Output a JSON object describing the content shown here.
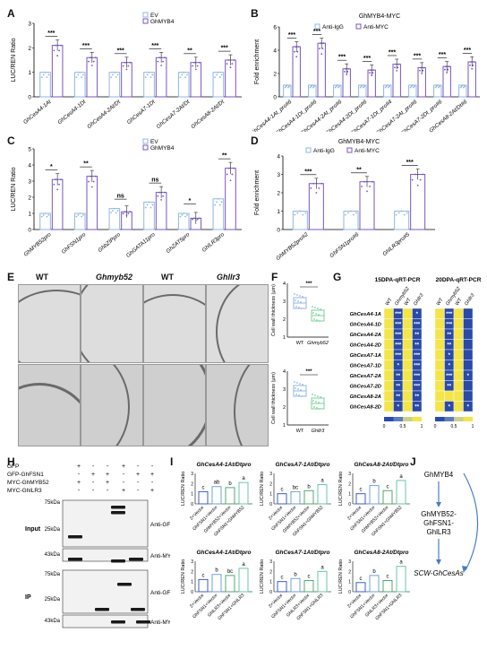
{
  "panels": {
    "A": {
      "letter": "A",
      "ylabel": "LUC/REN Ratio",
      "legend": [
        "EV",
        "GhMYB4"
      ],
      "colors": {
        "ev": "#8fb7e0",
        "myb": "#7a54c2"
      },
      "chart_data": {
        "type": "bar",
        "categories": [
          "GhCesA4-1At",
          "GhCesA4-1Dt",
          "GhCesA4-2At/Dt",
          "GhCesA7-1Dt",
          "GhCesA7-2At/Dt",
          "GhCesA8-2At/Dt"
        ],
        "series": [
          {
            "name": "EV",
            "values": [
              1,
              1,
              1,
              1,
              1,
              1
            ]
          },
          {
            "name": "GhMYB4",
            "values": [
              2.1,
              1.6,
              1.4,
              1.6,
              1.4,
              1.5
            ]
          }
        ],
        "ylim": [
          0,
          3
        ],
        "sig": [
          "***",
          "***",
          "***",
          "***",
          "**",
          "***"
        ]
      },
      "yticks": [
        "0",
        "1",
        "2",
        "3"
      ]
    },
    "B": {
      "letter": "B",
      "title": "GhMYB4-MYC",
      "ylabel": "Fold enrichment",
      "legend": [
        "Anti-IgG",
        "Anti-MYC"
      ],
      "chart_data": {
        "type": "bar",
        "categories": [
          "GhCesA4-1At_pro#6",
          "GhCesA4-1Dt_pro#6",
          "GhCesA4-2At_pro#6",
          "GhCesA4-2Dt_pro#6",
          "GhCesA7-1Dt_pro#4",
          "GhCesA7-2At_pro#6",
          "GhCesA7-2Dt_pro#6",
          "GhCesA8-2At/Dt#6"
        ],
        "series": [
          {
            "name": "Anti-IgG",
            "values": [
              1,
              1,
              1,
              1,
              1,
              1,
              1,
              1
            ]
          },
          {
            "name": "Anti-MYC",
            "values": [
              4.3,
              4.6,
              2.4,
              2.3,
              2.8,
              2.5,
              2.6,
              3.0
            ]
          }
        ],
        "ylim": [
          0,
          6
        ],
        "sig": [
          "***",
          "***",
          "***",
          "***",
          "***",
          "***",
          "***",
          "***"
        ]
      },
      "yticks": [
        "0",
        "2",
        "4",
        "6"
      ]
    },
    "C": {
      "letter": "C",
      "ylabel": "LUC/REN Ratio",
      "legend": [
        "EV",
        "GhMYB4"
      ],
      "chart_data": {
        "type": "bar",
        "categories": [
          "GhMYB52pro",
          "GhFSN1pro",
          "GhbZIPpro",
          "GhGATA11pro",
          "GhZAT5pro",
          "GhlLR3pro"
        ],
        "series": [
          {
            "name": "EV",
            "values": [
              1.0,
              1.0,
              1.3,
              1.7,
              1.0,
              1.9
            ]
          },
          {
            "name": "GhMYB4",
            "values": [
              3.1,
              3.3,
              1.1,
              2.3,
              0.7,
              3.8
            ]
          }
        ],
        "ylim": [
          0,
          5
        ],
        "sig": [
          "*",
          "**",
          "ns",
          "ns",
          "*",
          "**"
        ]
      },
      "yticks": [
        "0",
        "1",
        "2",
        "3",
        "4",
        "5"
      ]
    },
    "D": {
      "letter": "D",
      "title": "GhMYB4-MYC",
      "ylabel": "Fold enrichment",
      "legend": [
        "Anti-IgG",
        "Anti-MYC"
      ],
      "chart_data": {
        "type": "bar",
        "categories": [
          "GhMYB52pro#2",
          "GhFSN1pro#6",
          "GhlLR3pro#5"
        ],
        "series": [
          {
            "name": "Anti-IgG",
            "values": [
              1,
              1,
              1
            ]
          },
          {
            "name": "Anti-MYC",
            "values": [
              2.5,
              2.6,
              3.0
            ]
          }
        ],
        "ylim": [
          0,
          4
        ],
        "sig": [
          "***",
          "**",
          "***"
        ]
      },
      "yticks": [
        "0",
        "1",
        "2",
        "3",
        "4"
      ]
    },
    "E": {
      "letter": "E",
      "labels": [
        "WT",
        "Ghmyb52",
        "WT",
        "Ghllr3"
      ]
    },
    "F": {
      "letter": "F",
      "ylabel": "Cell wall thickness (μm)",
      "top": {
        "categories": [
          "WT",
          "Ghmyb52"
        ],
        "sig": "***",
        "yticks": [
          "1",
          "2",
          "3",
          "4"
        ]
      },
      "bottom": {
        "categories": [
          "WT",
          "Ghllr3"
        ],
        "sig": "***",
        "yticks": [
          "1",
          "2",
          "3",
          "4"
        ]
      }
    },
    "G": {
      "letter": "G",
      "titles": [
        "15DPA-qRT-PCR",
        "20DPA-qRT-PCR"
      ],
      "cols": [
        "WT",
        "Ghmyb52",
        "WT",
        "Ghllr3"
      ],
      "rows": [
        "GhCesA4-1A",
        "GhCesA4-1D",
        "GhCesA4-2A",
        "GhCesA4-2D",
        "GhCesA7-1A",
        "GhCesA7-1D",
        "GhCesA7-2A",
        "GhCesA7-2D",
        "GhCesA8-2A",
        "GhCesA8-2D"
      ],
      "stars15": [
        [
          "",
          "***",
          "",
          "*"
        ],
        [
          "",
          "***",
          "",
          "***"
        ],
        [
          "",
          "***",
          "",
          "**"
        ],
        [
          "",
          "***",
          "",
          "**"
        ],
        [
          "",
          "***",
          "",
          "***"
        ],
        [
          "",
          "*",
          "",
          "***"
        ],
        [
          "",
          "**",
          "",
          "***"
        ],
        [
          "",
          "**",
          "",
          "***"
        ],
        [
          "",
          "**",
          "",
          "**"
        ],
        [
          "",
          "*",
          "",
          "**"
        ]
      ],
      "stars20": [
        [
          "",
          "***",
          "",
          ""
        ],
        [
          "",
          "***",
          "",
          ""
        ],
        [
          "",
          "**",
          "",
          ""
        ],
        [
          "",
          "**",
          "",
          ""
        ],
        [
          "",
          "*",
          "",
          ""
        ],
        [
          "",
          "*",
          "",
          ""
        ],
        [
          "",
          "***",
          "",
          "*"
        ],
        [
          "",
          "**",
          "",
          ""
        ],
        [
          "",
          "",
          "",
          ""
        ],
        [
          "",
          "*",
          "",
          "*"
        ]
      ],
      "scale": [
        "0",
        "0.5",
        "1"
      ]
    },
    "H": {
      "letter": "H",
      "rows": [
        "GFP",
        "GFP-GhFSN1",
        "MYC-GhMYB52",
        "MYC-GhlLR3"
      ],
      "signs": [
        [
          "+",
          "-",
          "-",
          "+",
          "-",
          "-"
        ],
        [
          "-",
          "+",
          "+",
          "-",
          "+",
          "+"
        ],
        [
          "+",
          "-",
          "+",
          "-",
          "-",
          "-"
        ],
        [
          "-",
          "-",
          "-",
          "+",
          "-",
          "+"
        ]
      ],
      "kda": [
        "75kDa",
        "25kDa",
        "43kDa",
        "75kDa",
        "25kDa",
        "43kDa"
      ],
      "sections": [
        "Input",
        "IP"
      ],
      "antibodies": [
        "Anti-GFP",
        "Anti-MYC",
        "Anti-GFP",
        "Anti-MYC"
      ]
    },
    "I": {
      "letter": "I",
      "ylabel": "LUC/REN Ratio",
      "subplots": [
        {
          "title": "GhCesA4-1At/Dtpro",
          "categories": [
            "2×Vector",
            "GhFSN1+Vector",
            "GhMYB52+Vector",
            "GhFSN1+GhMYB52"
          ],
          "values": [
            1.2,
            1.7,
            1.6,
            2.1
          ],
          "letters": [
            "c",
            "ab",
            "b",
            "a"
          ]
        },
        {
          "title": "GhCesA7-1At/Dtpro",
          "categories": [
            "2×Vector",
            "GhFSN1+Vector",
            "GhMYB52+Vector",
            "GhFSN1+GhMYB52"
          ],
          "values": [
            1.0,
            1.2,
            1.3,
            1.9
          ],
          "letters": [
            "c",
            "bc",
            "b",
            "a"
          ]
        },
        {
          "title": "GhCesA8-2At/Dtpro",
          "categories": [
            "2×Vector",
            "GhFSN1+Vector",
            "GhMYB52+Vector",
            "GhFSN1+GhMYB52"
          ],
          "values": [
            1.0,
            1.8,
            1.3,
            2.3
          ],
          "letters": [
            "c",
            "b",
            "c",
            "a"
          ]
        },
        {
          "title": "GhCesA4-1At/Dtpro",
          "categories": [
            "2×Vector",
            "GhFSN1+Vector",
            "GhlLR3+Vector",
            "GhFSN1+GhlLR3"
          ],
          "values": [
            1.2,
            1.7,
            1.6,
            2.3
          ],
          "letters": [
            "c",
            "b",
            "bc",
            "a"
          ]
        },
        {
          "title": "GhCesA7-1At/Dtpro",
          "categories": [
            "2×Vector",
            "GhFSN1+Vector",
            "GhlLR3+Vector",
            "GhFSN1+GhlLR3"
          ],
          "values": [
            1.0,
            1.3,
            1.1,
            2.0
          ],
          "letters": [
            "c",
            "b",
            "c",
            "a"
          ]
        },
        {
          "title": "GhCesA8-2At/Dtpro",
          "categories": [
            "2×Vector",
            "GhFSN1+Vector",
            "GhlLR3+Vector",
            "GhFSN1+GhlLR3"
          ],
          "values": [
            0.9,
            1.6,
            1.1,
            2.5
          ],
          "letters": [
            "c",
            "b",
            "c",
            "a"
          ]
        }
      ]
    },
    "J": {
      "letter": "J",
      "nodes": [
        "GhMYB4",
        "GhMYB52-",
        "GhFSN1-",
        "GhlLR3",
        "SCW-GhCesAs"
      ]
    }
  }
}
